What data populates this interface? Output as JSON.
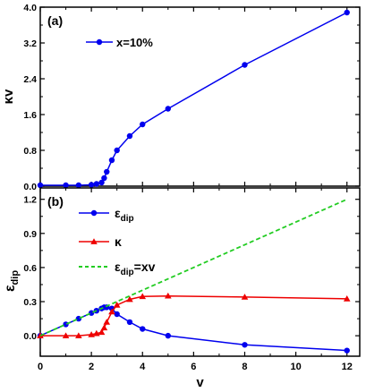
{
  "chart_data": [
    {
      "panel_label": "(a)",
      "type": "line",
      "ylabel": "κv",
      "xlim": [
        0,
        12.5
      ],
      "ylim": [
        0,
        4.0
      ],
      "yticks": [
        "0.0",
        "0.8",
        "1.6",
        "2.4",
        "3.2",
        "4.0"
      ],
      "series": [
        {
          "name": "x=10%",
          "color": "#0000ee",
          "marker": "circle",
          "x": [
            0.0,
            1.0,
            1.5,
            2.0,
            2.2,
            2.4,
            2.5,
            2.6,
            2.8,
            3.0,
            3.5,
            4.0,
            5.0,
            8.0,
            12.0
          ],
          "y": [
            0.02,
            0.02,
            0.02,
            0.03,
            0.05,
            0.08,
            0.18,
            0.32,
            0.58,
            0.8,
            1.12,
            1.38,
            1.73,
            2.71,
            3.88
          ]
        }
      ]
    },
    {
      "panel_label": "(b)",
      "type": "line",
      "xlabel": "v",
      "ylabel_main": "ε",
      "ylabel_sub": "dip",
      "xlim": [
        0,
        12.5
      ],
      "ylim": [
        -0.18,
        1.3
      ],
      "xticks": [
        "0",
        "2",
        "4",
        "6",
        "8",
        "10",
        "12"
      ],
      "yticks": [
        "0.0",
        "0.3",
        "0.6",
        "0.9",
        "1.2"
      ],
      "series": [
        {
          "name_main": "ε",
          "name_sub": "dip",
          "color": "#0000ee",
          "marker": "circle",
          "dash": "solid",
          "x": [
            0.0,
            1.0,
            1.5,
            2.0,
            2.2,
            2.4,
            2.5,
            2.6,
            2.8,
            3.0,
            3.5,
            4.0,
            5.0,
            8.0,
            12.0
          ],
          "y": [
            0.0,
            0.1,
            0.15,
            0.2,
            0.22,
            0.24,
            0.25,
            0.25,
            0.24,
            0.19,
            0.12,
            0.06,
            0.0,
            -0.08,
            -0.13
          ]
        },
        {
          "name_main": "κ",
          "name_sub": "",
          "color": "#ee0000",
          "marker": "triangle",
          "dash": "solid",
          "x": [
            0.0,
            1.0,
            1.5,
            2.0,
            2.2,
            2.4,
            2.5,
            2.6,
            2.8,
            3.0,
            3.5,
            4.0,
            5.0,
            8.0,
            12.0
          ],
          "y": [
            0.0,
            0.0,
            0.0,
            0.01,
            0.02,
            0.03,
            0.07,
            0.12,
            0.21,
            0.27,
            0.32,
            0.345,
            0.35,
            0.34,
            0.325
          ]
        },
        {
          "name_main": "ε",
          "name_sub": "dip",
          "name_suffix": "=xv",
          "color": "#22cc22",
          "marker": "none",
          "dash": "dashed",
          "x": [
            0.0,
            12.0
          ],
          "y": [
            0.0,
            1.2
          ]
        }
      ]
    }
  ]
}
